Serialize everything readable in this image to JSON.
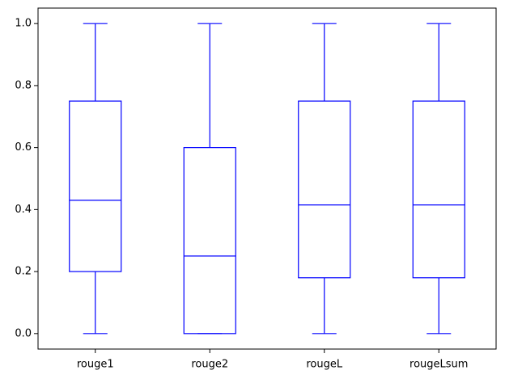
{
  "chart_data": {
    "type": "box",
    "categories": [
      "rouge1",
      "rouge2",
      "rougeL",
      "rougeLsum"
    ],
    "boxes": [
      {
        "min": 0,
        "q1": 0.2,
        "median": 0.43,
        "q3": 0.75,
        "max": 1
      },
      {
        "min": 0,
        "q1": 0,
        "median": 0.25,
        "q3": 0.6,
        "max": 1
      },
      {
        "min": 0,
        "q1": 0.18,
        "median": 0.415,
        "q3": 0.75,
        "max": 1
      },
      {
        "min": 0,
        "q1": 0.18,
        "median": 0.415,
        "q3": 0.75,
        "max": 1
      }
    ],
    "color": "#0000ff",
    "ylim": [
      -0.05,
      1.05
    ],
    "yticks": [
      {
        "value": 0,
        "label": "0.0"
      },
      0.2,
      0.4,
      0.6,
      0.8,
      {
        "value": 1,
        "label": "1.0"
      }
    ]
  }
}
